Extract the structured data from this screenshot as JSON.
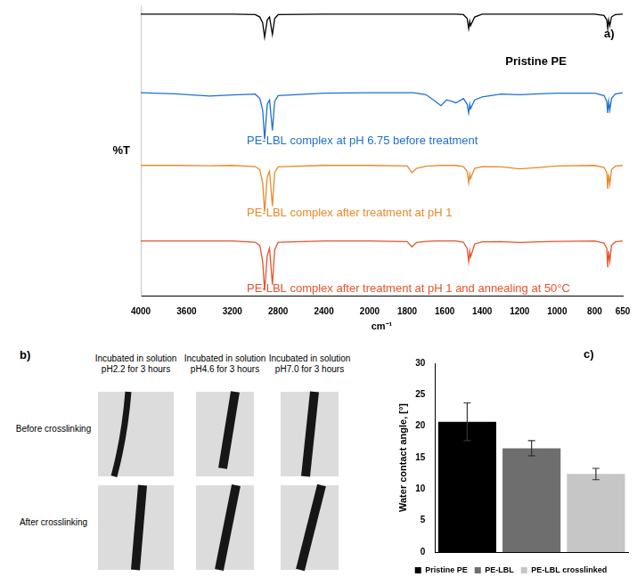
{
  "chart_data": [
    {
      "type": "line",
      "annotations": [
        "a)"
      ],
      "x_label": "cm⁻¹",
      "y_label": "%T",
      "x": [
        4000,
        3700,
        3400,
        3200,
        3000,
        2960,
        2935,
        2918,
        2895,
        2875,
        2850,
        2830,
        2800,
        2400,
        2000,
        1800,
        1775,
        1750,
        1700,
        1650,
        1620,
        1590,
        1560,
        1540,
        1500,
        1480,
        1472,
        1466,
        1462,
        1440,
        1400,
        1300,
        1200,
        1100,
        1000,
        800,
        750,
        735,
        730,
        725,
        719,
        710,
        690,
        650
      ],
      "series": [
        {
          "name": "Pristine PE",
          "color": "#000000",
          "values": [
            97,
            97,
            97,
            97,
            96.8,
            96,
            94,
            89,
            95,
            96,
            90,
            95.5,
            96.8,
            97,
            97,
            97,
            97,
            97,
            97,
            97,
            97,
            97,
            97,
            97,
            96.8,
            95.5,
            92,
            94.5,
            93,
            96,
            97,
            97,
            97,
            97,
            97,
            97,
            96.5,
            95,
            92,
            95,
            93,
            96,
            96.8,
            97
          ]
        },
        {
          "name": "PE-LBL complex at pH 6.75 before treatment",
          "color": "#1f6fd1",
          "values": [
            70,
            69.6,
            68.8,
            69.2,
            69.5,
            68,
            64,
            54,
            66,
            67.5,
            57,
            67,
            69,
            69.8,
            70,
            70,
            70,
            69.8,
            69.3,
            67,
            65.5,
            67.5,
            67,
            66.5,
            68,
            66,
            63,
            66,
            64.5,
            67.5,
            68.5,
            69.5,
            69.3,
            69.6,
            69.8,
            69.8,
            69,
            67,
            63,
            67,
            64,
            68,
            69.5,
            70
          ]
        },
        {
          "name": "PE-LBL complex after treatment at pH 1",
          "color": "#e8892a",
          "values": [
            45,
            45,
            44.9,
            45,
            44.6,
            43.5,
            39,
            29,
            41,
            43,
            31,
            42.5,
            44.5,
            45,
            45,
            44.8,
            42.5,
            44,
            44.7,
            44.9,
            45,
            45,
            45,
            45,
            44.6,
            43,
            39,
            42,
            40.5,
            44,
            44.6,
            44.5,
            43.8,
            44.3,
            44.8,
            45,
            44.3,
            42.5,
            37,
            42,
            38.5,
            43.5,
            44.7,
            45
          ]
        },
        {
          "name": "PE-LBL complex after treatment at pH 1 and annealing at 50°C",
          "color": "#e5532a",
          "values": [
            19,
            19,
            19,
            19,
            18.6,
            17.5,
            12,
            2,
            14,
            16.5,
            4,
            16,
            18.6,
            19,
            19,
            18.8,
            17,
            18.5,
            18.9,
            19,
            19,
            19,
            19,
            19,
            18.6,
            16.5,
            12,
            15.5,
            13.5,
            18,
            18.7,
            18.8,
            18.5,
            18.7,
            18.9,
            19,
            18.3,
            16.5,
            10,
            15.5,
            12,
            17.5,
            18.7,
            19
          ]
        }
      ],
      "xlim": [
        4000,
        650
      ],
      "xticks": [
        4000,
        3600,
        3200,
        2800,
        2400,
        2000,
        1800,
        1600,
        1400,
        1200,
        1000,
        800,
        650
      ],
      "ylim": [
        0,
        100
      ],
      "yticks": [],
      "tick_labels": "x",
      "grid": false
    },
    {
      "type": "bar",
      "annotations": [
        "c)"
      ],
      "y_label": "Water contact angle, [°]",
      "categories": [
        "Pristine PE",
        "PE-LBL",
        "PE-LBL crosslinked"
      ],
      "values": [
        20.7,
        16.5,
        12.4
      ],
      "errors": [
        3.0,
        1.2,
        0.9
      ],
      "colors": [
        "#000000",
        "#6e6e6e",
        "#c6c6c6"
      ],
      "ylim": [
        0,
        30
      ],
      "yticks": [
        0,
        5,
        10,
        15,
        20,
        25,
        30
      ],
      "tick_labels": "y",
      "legend": "bottom",
      "grid": false
    }
  ],
  "panel_b": {
    "label": "b)",
    "columns": [
      "Incubated in solution pH2.2 for 3 hours",
      "Incubated in solution pH4.6 for 3 hours",
      "Incubated in solution pH7.0 for 3 hours"
    ],
    "rows": [
      "Before crosslinking",
      "After crosslinking"
    ]
  }
}
